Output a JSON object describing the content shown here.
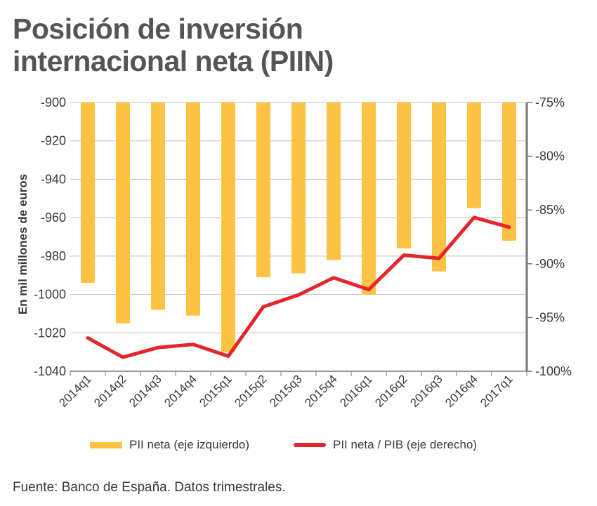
{
  "title_line1": "Posición de inversión",
  "title_line2": "internacional neta (PIIN)",
  "source": "Fuente: Banco de España. Datos trimestrales.",
  "colors": {
    "bar": "#FBC244",
    "line": "#E2262A",
    "grid": "#bdbdbd",
    "axis": "#777777"
  },
  "chart_data": {
    "type": "bar+line",
    "categories": [
      "2014q1",
      "2014q2",
      "2014q3",
      "2014q4",
      "2015q1",
      "2015q2",
      "2015q3",
      "2015q4",
      "2016q1",
      "2016q2",
      "2016q3",
      "2016q4",
      "2017q1"
    ],
    "series": [
      {
        "name": "PII neta (eje izquierdo)",
        "type": "bar",
        "axis": "left",
        "values": [
          -994,
          -1015,
          -1008,
          -1011,
          -1030,
          -991,
          -989,
          -982,
          -1000,
          -976,
          -988,
          -955,
          -972
        ]
      },
      {
        "name": "PII neta / PIB (eje derecho)",
        "type": "line",
        "axis": "right",
        "values": [
          -96.9,
          -98.7,
          -97.8,
          -97.5,
          -98.6,
          -94.0,
          -92.9,
          -91.3,
          -92.4,
          -89.2,
          -89.5,
          -85.7,
          -86.6
        ]
      }
    ],
    "left_axis": {
      "label": "En mil millones de euros",
      "range": [
        -1040,
        -900
      ],
      "ticks": [
        -900,
        -920,
        -940,
        -960,
        -980,
        -1000,
        -1020,
        -1040
      ],
      "tick_labels": [
        "-900",
        "-920",
        "-940",
        "-960",
        "-980",
        "-1000",
        "-1020",
        "-1040"
      ]
    },
    "right_axis": {
      "range": [
        -100,
        -75
      ],
      "ticks": [
        -75,
        -80,
        -85,
        -90,
        -95,
        -100
      ],
      "tick_labels": [
        "-75%",
        "-80%",
        "-85%",
        "-90%",
        "-95%",
        "-100%"
      ]
    },
    "legend": [
      "PII neta (eje izquierdo)",
      "PII neta / PIB (eje derecho)"
    ],
    "legend_position": "bottom",
    "grid": true
  }
}
